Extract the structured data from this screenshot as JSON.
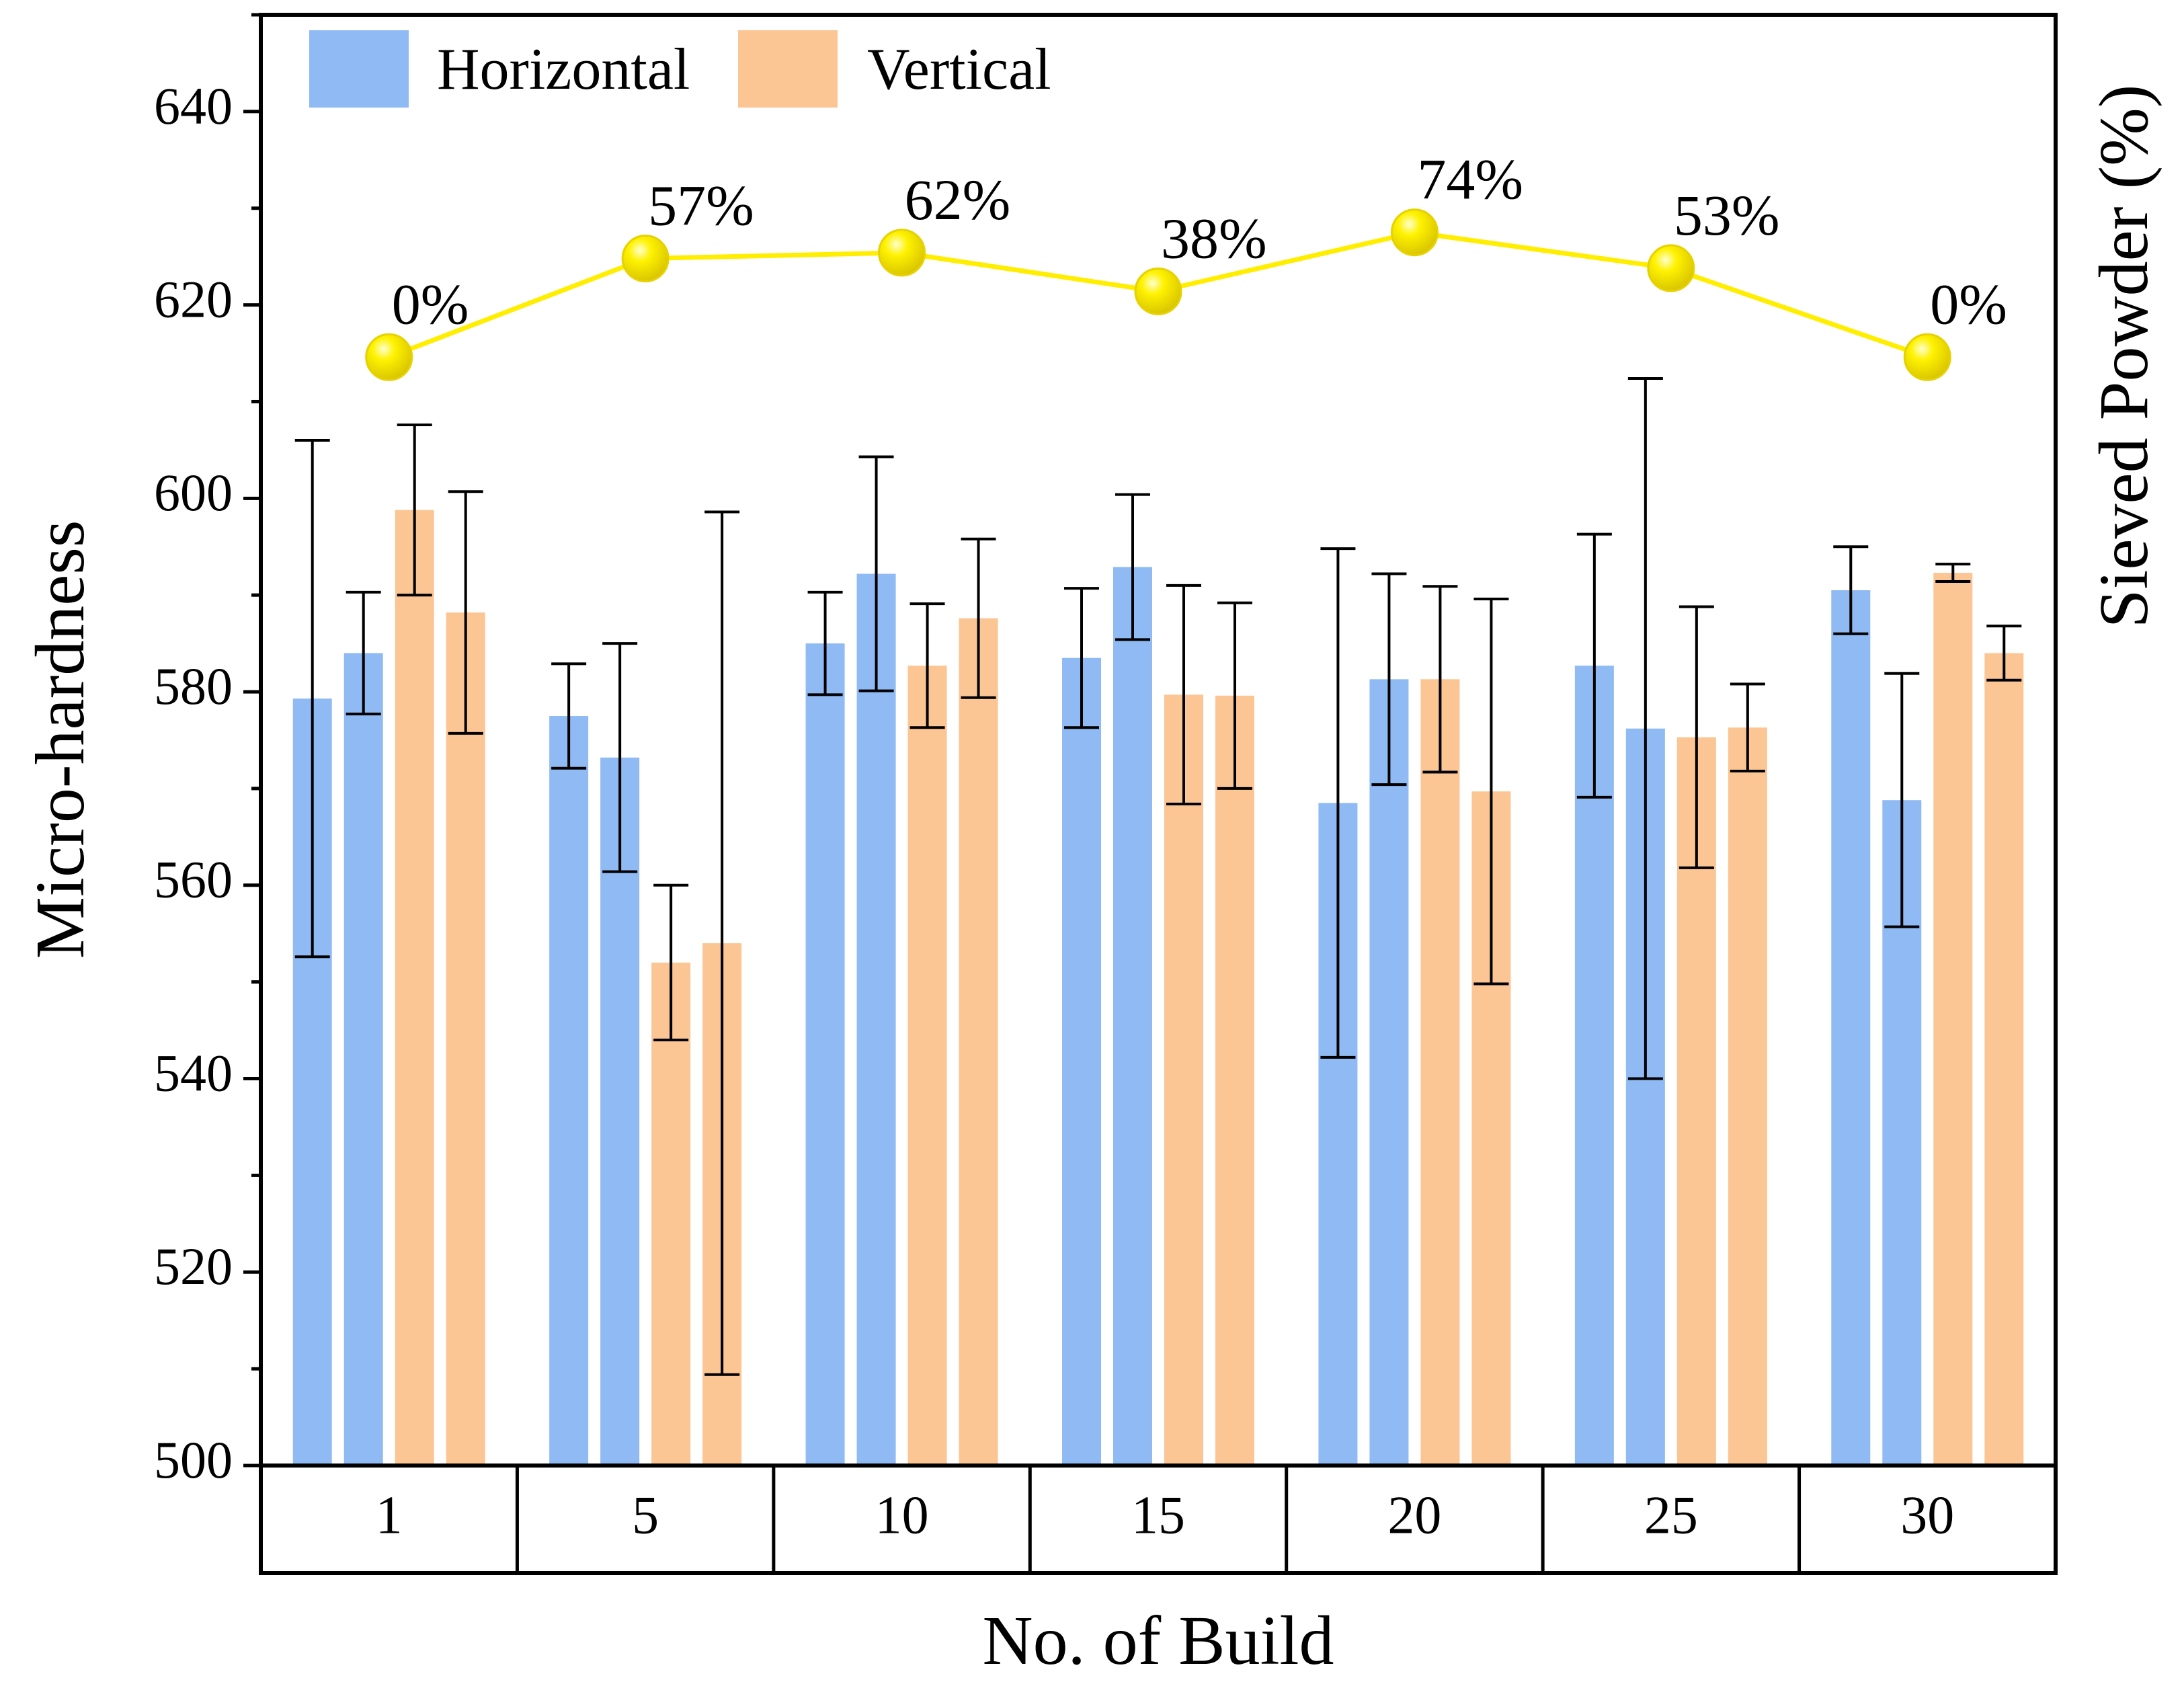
{
  "chart_data": {
    "type": "bar",
    "title": "",
    "xlabel": "No. of Build",
    "ylabel": "Micro-hardness",
    "y2label": "Sieved Powder (%)",
    "ylim": [
      500,
      650
    ],
    "yticks": [
      "500",
      "520",
      "540",
      "560",
      "580",
      "600",
      "620",
      "640"
    ],
    "categories": [
      "1",
      "5",
      "10",
      "15",
      "20",
      "25",
      "30"
    ],
    "bars_per_category": 4,
    "legend": [
      {
        "name": "Horizontal",
        "color": "#8fbaf3"
      },
      {
        "name": "Vertical",
        "color": "#fcc594"
      }
    ],
    "legend_position": "top-left",
    "series": [
      {
        "name": "Horizontal",
        "color": "#8fbaf3",
        "values": [
          579.3,
          577.5,
          585.0,
          583.5,
          568.5,
          582.7,
          590.5
        ],
        "errors": [
          26.7,
          5.4,
          5.3,
          7.2,
          26.3,
          13.6,
          4.5
        ]
      },
      {
        "name": "Horizontal",
        "color": "#8fbaf3",
        "values": [
          584.0,
          573.2,
          592.2,
          592.9,
          581.3,
          576.2,
          568.8
        ],
        "errors": [
          6.3,
          11.8,
          12.1,
          7.5,
          10.9,
          36.2,
          13.1
        ]
      },
      {
        "name": "Vertical",
        "color": "#fcc594",
        "values": [
          598.8,
          552.0,
          582.7,
          579.7,
          581.3,
          575.3,
          592.3
        ],
        "errors": [
          8.8,
          8.0,
          6.4,
          11.3,
          9.6,
          13.5,
          0.9
        ]
      },
      {
        "name": "Vertical",
        "color": "#fcc594",
        "values": [
          588.2,
          554.0,
          587.6,
          579.6,
          569.7,
          576.3,
          584.0
        ],
        "errors": [
          12.5,
          44.6,
          8.2,
          9.6,
          19.9,
          4.5,
          2.8
        ]
      }
    ],
    "sieved_powder": {
      "name": "Sieved Powder (%)",
      "color": "#ffee00",
      "values": [
        0,
        57,
        62,
        38,
        74,
        53,
        0
      ],
      "labels": [
        "0%",
        "57%",
        "62%",
        "38%",
        "74%",
        "53%",
        "0%"
      ],
      "marker_y_left_axis": [
        614.6,
        624.8,
        625.4,
        621.4,
        627.5,
        623.8,
        614.6
      ]
    }
  }
}
